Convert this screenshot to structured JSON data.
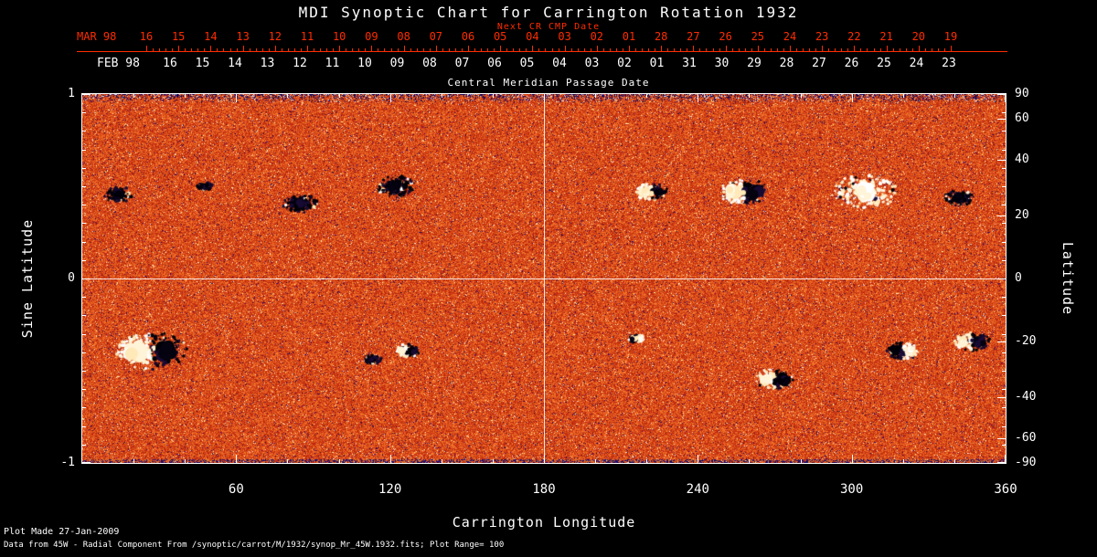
{
  "title": "MDI Synoptic Chart for Carrington Rotation 1932",
  "top_axis": {
    "red_label": "Next CR CMP Date",
    "red_month": "MAR 98",
    "red_days": [
      "16",
      "15",
      "14",
      "13",
      "12",
      "11",
      "10",
      "09",
      "08",
      "07",
      "06",
      "05",
      "04",
      "03",
      "02",
      "01",
      "28",
      "27",
      "26",
      "25",
      "24",
      "23",
      "22",
      "21",
      "20",
      "19"
    ],
    "white_month": "FEB 98",
    "white_days": [
      "16",
      "15",
      "14",
      "13",
      "12",
      "11",
      "10",
      "09",
      "08",
      "07",
      "06",
      "05",
      "04",
      "03",
      "02",
      "01",
      "31",
      "30",
      "29",
      "28",
      "27",
      "26",
      "25",
      "24",
      "23"
    ],
    "caption": "Central Meridian Passage Date"
  },
  "axes": {
    "left_title": "Sine Latitude",
    "left_ticks": [
      {
        "label": "1",
        "sine": 1
      },
      {
        "label": "0",
        "sine": 0
      },
      {
        "label": "-1",
        "sine": -1
      }
    ],
    "right_title": "Latitude",
    "right_ticks": [
      {
        "label": "90",
        "deg": 90
      },
      {
        "label": "60",
        "deg": 60
      },
      {
        "label": "40",
        "deg": 40
      },
      {
        "label": "20",
        "deg": 20
      },
      {
        "label": "0",
        "deg": 0
      },
      {
        "label": "-20",
        "deg": -20
      },
      {
        "label": "-40",
        "deg": -40
      },
      {
        "label": "-60",
        "deg": -60
      },
      {
        "label": "-90",
        "deg": -90
      }
    ],
    "bottom_title": "Carrington Longitude",
    "bottom_ticks": [
      {
        "label": "60",
        "deg": 60
      },
      {
        "label": "120",
        "deg": 120
      },
      {
        "label": "180",
        "deg": 180
      },
      {
        "label": "240",
        "deg": 240
      },
      {
        "label": "300",
        "deg": 300
      },
      {
        "label": "360",
        "deg": 360
      }
    ]
  },
  "footer": {
    "line1": "Plot Made 27-Jan-2009",
    "line2": "Data from 45W - Radial Component From /synoptic/carrot/M/1932/synop_Mr_45W.1932.fits; Plot Range= 100"
  },
  "colors": {
    "accent_red": "#ff2d00",
    "axis_white": "#ffffff",
    "background": "#000000",
    "field_orange": "#e05020",
    "negative_polarity": "#0a0530",
    "positive_polarity": "#ffffff"
  },
  "chart_data": {
    "type": "heatmap",
    "subtype": "solar-synoptic-magnetogram",
    "title": "MDI Synoptic Chart for Carrington Rotation 1932",
    "xlabel": "Carrington Longitude",
    "ylabel_left": "Sine Latitude",
    "ylabel_right": "Latitude",
    "xlim": [
      0,
      360
    ],
    "ylim_sine": [
      -1,
      1
    ],
    "x_ticks": [
      60,
      120,
      180,
      240,
      300,
      360
    ],
    "latitude_ticks": [
      90,
      60,
      40,
      20,
      0,
      -20,
      -40,
      -60,
      -90
    ],
    "crosshair": {
      "longitude": 180,
      "latitude": 0
    },
    "plot_range_gauss": 100,
    "active_regions": [
      {
        "lon": 27,
        "lat": -23,
        "r": 26,
        "type": "bipolar-wb"
      },
      {
        "lon": 14,
        "lat": 27,
        "r": 11,
        "type": "neg"
      },
      {
        "lon": 48,
        "lat": 30,
        "r": 6,
        "type": "neg"
      },
      {
        "lon": 85,
        "lat": 24,
        "r": 13,
        "type": "neg"
      },
      {
        "lon": 122,
        "lat": 30,
        "r": 15,
        "type": "neg"
      },
      {
        "lon": 113,
        "lat": -26,
        "r": 7,
        "type": "neg"
      },
      {
        "lon": 127,
        "lat": -23,
        "r": 9,
        "type": "bipolar-wb"
      },
      {
        "lon": 222,
        "lat": 28,
        "r": 12,
        "type": "bipolar-wb"
      },
      {
        "lon": 216,
        "lat": -19,
        "r": 6,
        "type": "bipolar-bw"
      },
      {
        "lon": 258,
        "lat": 28,
        "r": 18,
        "type": "bipolar-wb"
      },
      {
        "lon": 305,
        "lat": 28,
        "r": 24,
        "type": "pos"
      },
      {
        "lon": 342,
        "lat": 26,
        "r": 11,
        "type": "neg"
      },
      {
        "lon": 270,
        "lat": -33,
        "r": 14,
        "type": "bipolar-wb"
      },
      {
        "lon": 320,
        "lat": -23,
        "r": 12,
        "type": "bipolar-bw"
      },
      {
        "lon": 347,
        "lat": -20,
        "r": 13,
        "type": "bipolar-wb"
      }
    ]
  }
}
